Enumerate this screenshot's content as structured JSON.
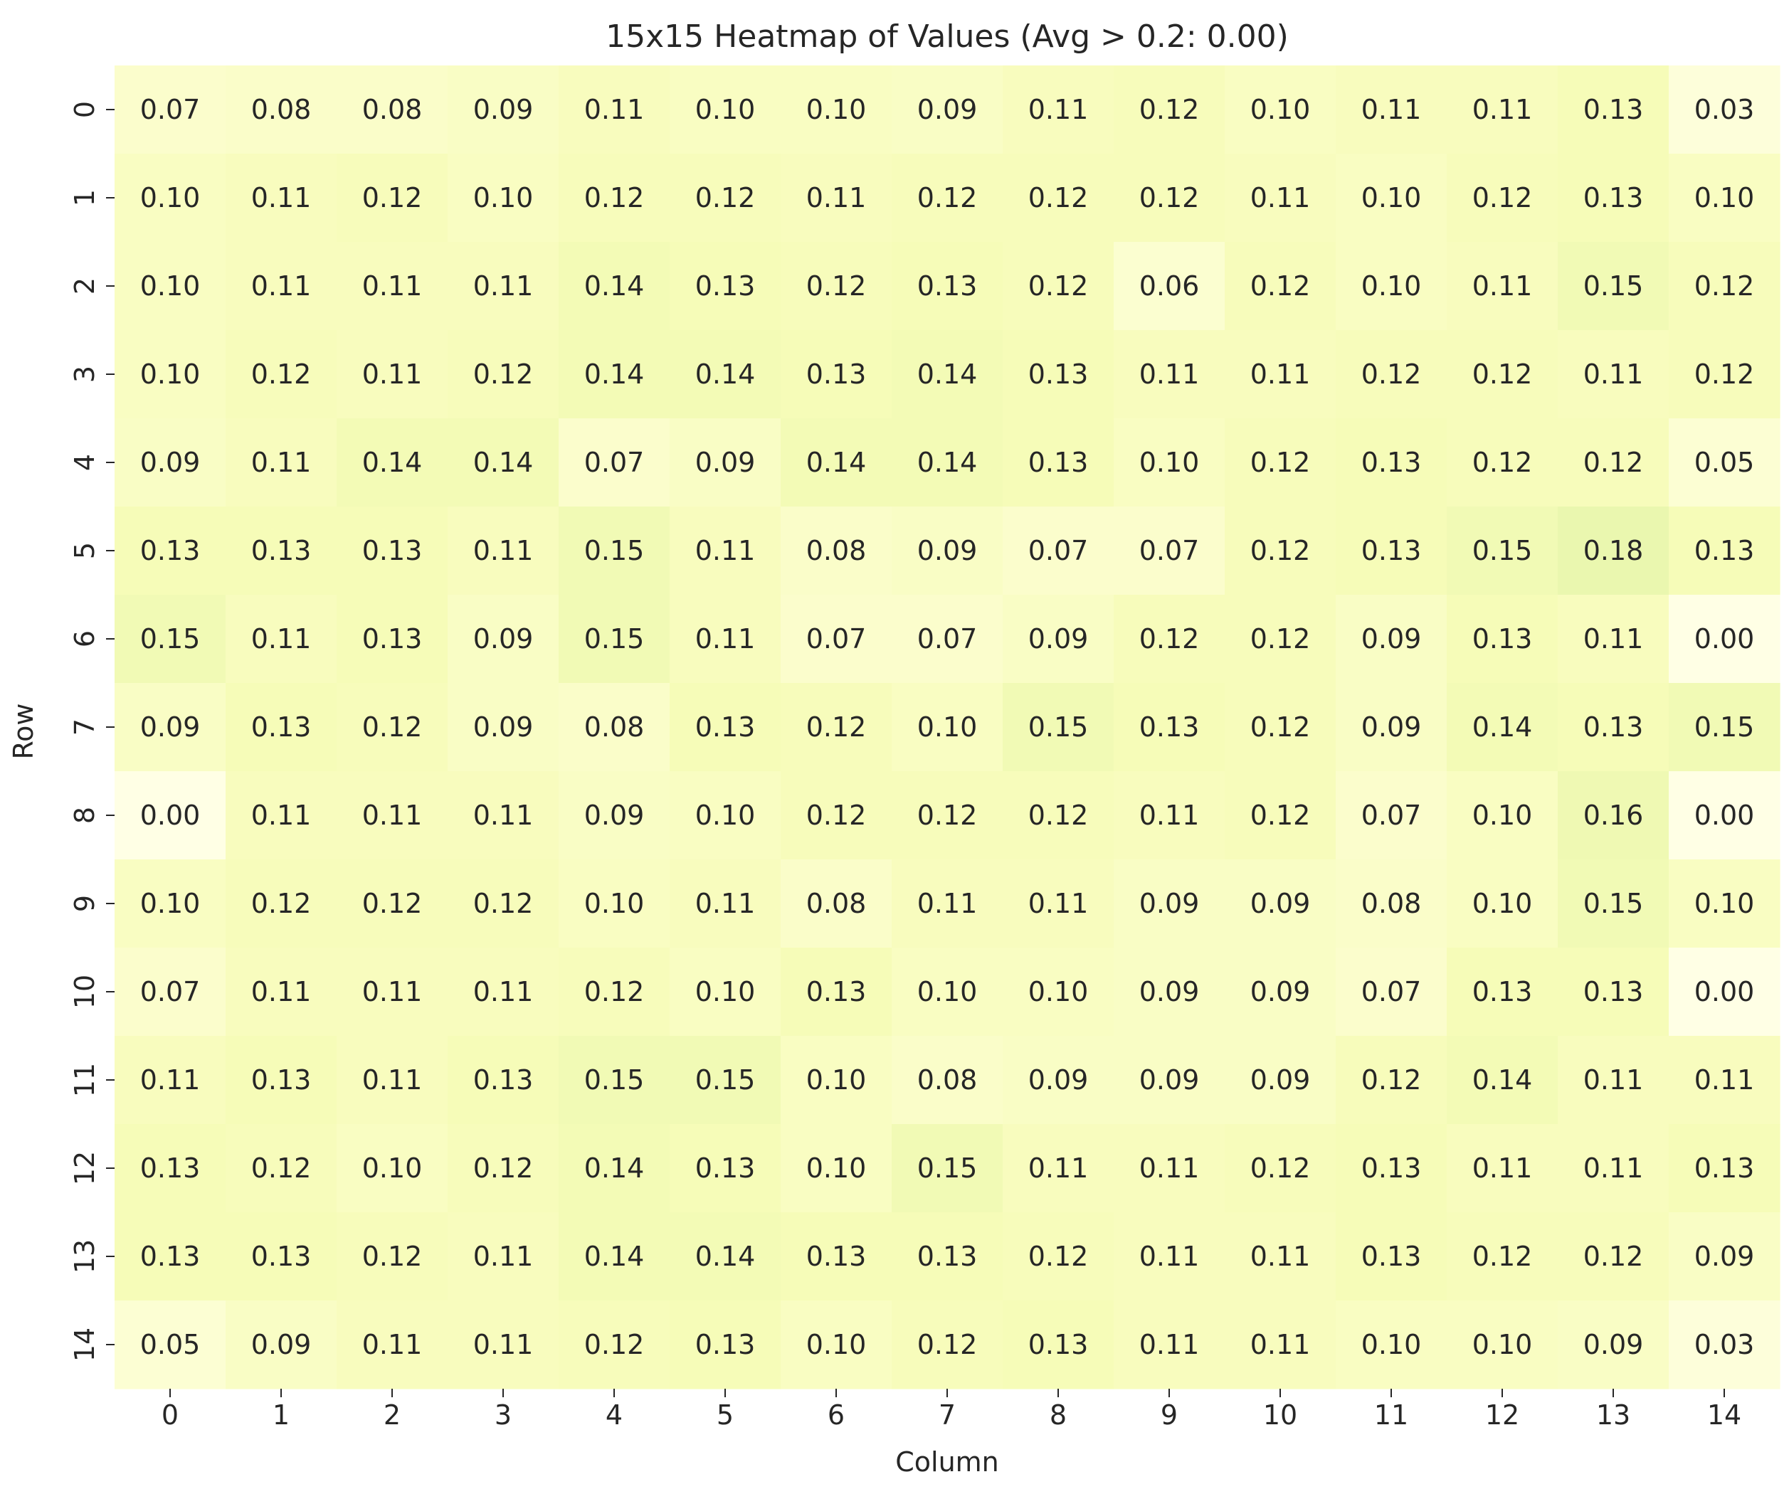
{
  "chart_data": {
    "type": "heatmap",
    "title": "15x15 Heatmap of Values (Avg > 0.2: 0.00)",
    "xlabel": "Column",
    "ylabel": "Row",
    "x_categories": [
      "0",
      "1",
      "2",
      "3",
      "4",
      "5",
      "6",
      "7",
      "8",
      "9",
      "10",
      "11",
      "12",
      "13",
      "14"
    ],
    "y_categories": [
      "0",
      "1",
      "2",
      "3",
      "4",
      "5",
      "6",
      "7",
      "8",
      "9",
      "10",
      "11",
      "12",
      "13",
      "14"
    ],
    "color_range": [
      0,
      1
    ],
    "colormap": [
      "#ffffe5",
      "#f7fcb9",
      "#d9f0a3",
      "#addd8e",
      "#78c679",
      "#41ab5d",
      "#238443",
      "#006837",
      "#004529"
    ],
    "values": [
      [
        0.07,
        0.08,
        0.08,
        0.09,
        0.11,
        0.1,
        0.1,
        0.09,
        0.11,
        0.12,
        0.1,
        0.11,
        0.11,
        0.13,
        0.03
      ],
      [
        0.1,
        0.11,
        0.12,
        0.1,
        0.12,
        0.12,
        0.11,
        0.12,
        0.12,
        0.12,
        0.11,
        0.1,
        0.12,
        0.13,
        0.1
      ],
      [
        0.1,
        0.11,
        0.11,
        0.11,
        0.14,
        0.13,
        0.12,
        0.13,
        0.12,
        0.06,
        0.12,
        0.1,
        0.11,
        0.15,
        0.12
      ],
      [
        0.1,
        0.12,
        0.11,
        0.12,
        0.14,
        0.14,
        0.13,
        0.14,
        0.13,
        0.11,
        0.11,
        0.12,
        0.12,
        0.11,
        0.12
      ],
      [
        0.09,
        0.11,
        0.14,
        0.14,
        0.07,
        0.09,
        0.14,
        0.14,
        0.13,
        0.1,
        0.12,
        0.13,
        0.12,
        0.12,
        0.05
      ],
      [
        0.13,
        0.13,
        0.13,
        0.11,
        0.15,
        0.11,
        0.08,
        0.09,
        0.07,
        0.07,
        0.12,
        0.13,
        0.15,
        0.18,
        0.13
      ],
      [
        0.15,
        0.11,
        0.13,
        0.09,
        0.15,
        0.11,
        0.07,
        0.07,
        0.09,
        0.12,
        0.12,
        0.09,
        0.13,
        0.11,
        0.0
      ],
      [
        0.09,
        0.13,
        0.12,
        0.09,
        0.08,
        0.13,
        0.12,
        0.1,
        0.15,
        0.13,
        0.12,
        0.09,
        0.14,
        0.13,
        0.15
      ],
      [
        0.0,
        0.11,
        0.11,
        0.11,
        0.09,
        0.1,
        0.12,
        0.12,
        0.12,
        0.11,
        0.12,
        0.07,
        0.1,
        0.16,
        0.0
      ],
      [
        0.1,
        0.12,
        0.12,
        0.12,
        0.1,
        0.11,
        0.08,
        0.11,
        0.11,
        0.09,
        0.09,
        0.08,
        0.1,
        0.15,
        0.1
      ],
      [
        0.07,
        0.11,
        0.11,
        0.11,
        0.12,
        0.1,
        0.13,
        0.1,
        0.1,
        0.09,
        0.09,
        0.07,
        0.13,
        0.13,
        0.0
      ],
      [
        0.11,
        0.13,
        0.11,
        0.13,
        0.15,
        0.15,
        0.1,
        0.08,
        0.09,
        0.09,
        0.09,
        0.12,
        0.14,
        0.11,
        0.11
      ],
      [
        0.13,
        0.12,
        0.1,
        0.12,
        0.14,
        0.13,
        0.1,
        0.15,
        0.11,
        0.11,
        0.12,
        0.13,
        0.11,
        0.11,
        0.13
      ],
      [
        0.13,
        0.13,
        0.12,
        0.11,
        0.14,
        0.14,
        0.13,
        0.13,
        0.12,
        0.11,
        0.11,
        0.13,
        0.12,
        0.12,
        0.09
      ],
      [
        0.05,
        0.09,
        0.11,
        0.11,
        0.12,
        0.13,
        0.1,
        0.12,
        0.13,
        0.11,
        0.11,
        0.1,
        0.1,
        0.09,
        0.03
      ]
    ]
  }
}
